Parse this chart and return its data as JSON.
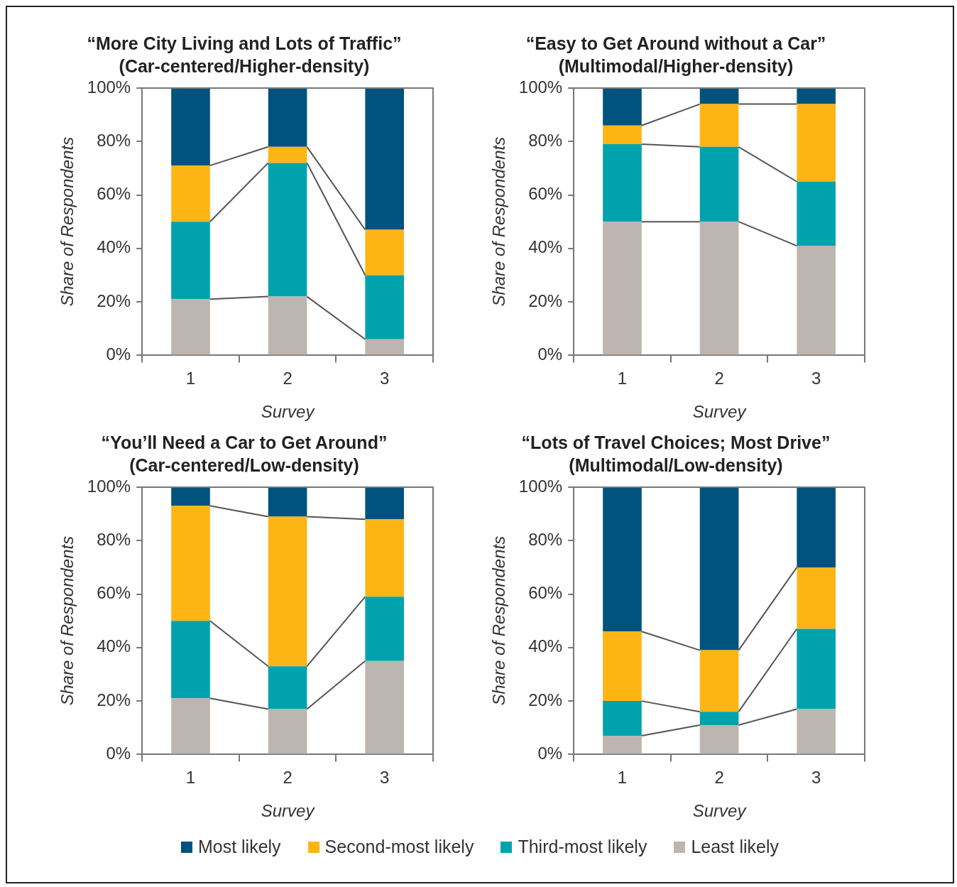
{
  "chart_data": [
    {
      "type": "bar",
      "stacked": true,
      "title": "“More City Living and Lots of Traffic”",
      "subtitle": "(Car-centered/Higher-density)",
      "xlabel": "Survey",
      "ylabel": "Share of Respondents",
      "categories": [
        "1",
        "2",
        "3"
      ],
      "ylim": [
        0,
        100
      ],
      "yticks": [
        {
          "value": 0,
          "label": "0%"
        },
        {
          "value": 20,
          "label": "20%"
        },
        {
          "value": 40,
          "label": "40%"
        },
        {
          "value": 60,
          "label": "60%"
        },
        {
          "value": 80,
          "label": "80%"
        },
        {
          "value": 100,
          "label": "100%"
        }
      ],
      "grid": false,
      "legend": "bottom",
      "series": [
        {
          "name": "Least likely",
          "color": "#bdb5af",
          "values": [
            21,
            22,
            6
          ]
        },
        {
          "name": "Third-most likely",
          "color": "#00a3ad",
          "values": [
            29,
            50,
            24
          ]
        },
        {
          "name": "Second-most likely",
          "color": "#fdb515",
          "values": [
            21,
            6,
            17
          ]
        },
        {
          "name": "Most likely",
          "color": "#00537e",
          "values": [
            29,
            22,
            53
          ]
        }
      ]
    },
    {
      "type": "bar",
      "stacked": true,
      "title": "“Easy to Get Around without a Car”",
      "subtitle": "(Multimodal/Higher-density)",
      "xlabel": "Survey",
      "ylabel": "Share of Respondents",
      "categories": [
        "1",
        "2",
        "3"
      ],
      "ylim": [
        0,
        100
      ],
      "yticks": [
        {
          "value": 0,
          "label": "0%"
        },
        {
          "value": 20,
          "label": "20%"
        },
        {
          "value": 40,
          "label": "40%"
        },
        {
          "value": 60,
          "label": "60%"
        },
        {
          "value": 80,
          "label": "80%"
        },
        {
          "value": 100,
          "label": "100%"
        }
      ],
      "grid": false,
      "legend": "bottom",
      "series": [
        {
          "name": "Least likely",
          "color": "#bdb5af",
          "values": [
            50,
            50,
            41
          ]
        },
        {
          "name": "Third-most likely",
          "color": "#00a3ad",
          "values": [
            29,
            28,
            24
          ]
        },
        {
          "name": "Second-most likely",
          "color": "#fdb515",
          "values": [
            7,
            16,
            29
          ]
        },
        {
          "name": "Most likely",
          "color": "#00537e",
          "values": [
            14,
            6,
            6
          ]
        }
      ]
    },
    {
      "type": "bar",
      "stacked": true,
      "title": "“You’ll Need a Car to Get Around”",
      "subtitle": "(Car-centered/Low-density)",
      "xlabel": "Survey",
      "ylabel": "Share of Respondents",
      "categories": [
        "1",
        "2",
        "3"
      ],
      "ylim": [
        0,
        100
      ],
      "yticks": [
        {
          "value": 0,
          "label": "0%"
        },
        {
          "value": 20,
          "label": "20%"
        },
        {
          "value": 40,
          "label": "40%"
        },
        {
          "value": 60,
          "label": "60%"
        },
        {
          "value": 80,
          "label": "80%"
        },
        {
          "value": 100,
          "label": "100%"
        }
      ],
      "grid": false,
      "legend": "bottom",
      "series": [
        {
          "name": "Least likely",
          "color": "#bdb5af",
          "values": [
            21,
            17,
            35
          ]
        },
        {
          "name": "Third-most likely",
          "color": "#00a3ad",
          "values": [
            29,
            16,
            24
          ]
        },
        {
          "name": "Second-most likely",
          "color": "#fdb515",
          "values": [
            43,
            56,
            29
          ]
        },
        {
          "name": "Most likely",
          "color": "#00537e",
          "values": [
            7,
            11,
            12
          ]
        }
      ]
    },
    {
      "type": "bar",
      "stacked": true,
      "title": "“Lots of Travel Choices; Most Drive”",
      "subtitle": "(Multimodal/Low-density)",
      "xlabel": "Survey",
      "ylabel": "Share of Respondents",
      "categories": [
        "1",
        "2",
        "3"
      ],
      "ylim": [
        0,
        100
      ],
      "yticks": [
        {
          "value": 0,
          "label": "0%"
        },
        {
          "value": 20,
          "label": "20%"
        },
        {
          "value": 40,
          "label": "40%"
        },
        {
          "value": 60,
          "label": "60%"
        },
        {
          "value": 80,
          "label": "80%"
        },
        {
          "value": 100,
          "label": "100%"
        }
      ],
      "grid": false,
      "legend": "bottom",
      "series": [
        {
          "name": "Least likely",
          "color": "#bdb5af",
          "values": [
            7,
            11,
            17
          ]
        },
        {
          "name": "Third-most likely",
          "color": "#00a3ad",
          "values": [
            13,
            5,
            30
          ]
        },
        {
          "name": "Second-most likely",
          "color": "#fdb515",
          "values": [
            26,
            23,
            23
          ]
        },
        {
          "name": "Most likely",
          "color": "#00537e",
          "values": [
            54,
            61,
            30
          ]
        }
      ]
    }
  ]
}
